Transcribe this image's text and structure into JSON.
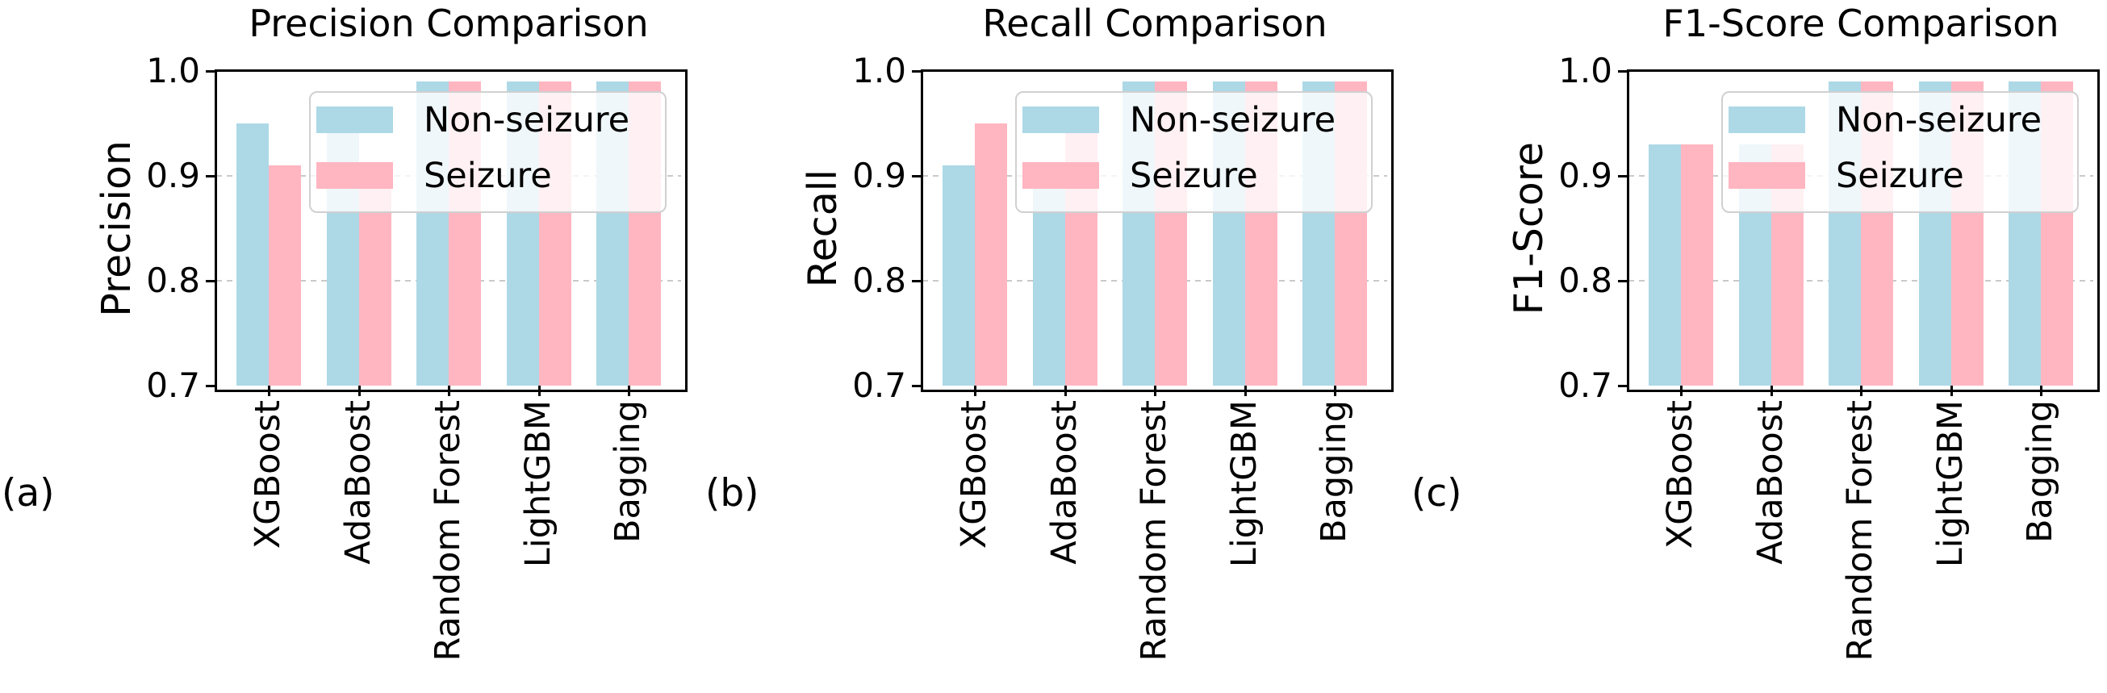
{
  "figure": {
    "background": "#ffffff",
    "panel_letters": [
      "(a)",
      "(b)",
      "(c)"
    ]
  },
  "colors": {
    "non_seizure": "#ADD8E6",
    "seizure": "#FFB6C1",
    "grid": "#c9c9c9",
    "spine": "#000000",
    "legend_border": "#d0d0d0",
    "text": "#000000"
  },
  "legend": {
    "labels": [
      "Non-seizure",
      "Seizure"
    ],
    "position": "upper center"
  },
  "chart_data": [
    {
      "type": "bar",
      "title": "Precision Comparison",
      "ylabel": "Precision",
      "panel_label": "(a)",
      "categories": [
        "XGBoost",
        "AdaBoost",
        "Random Forest",
        "LightGBM",
        "Bagging"
      ],
      "series": [
        {
          "name": "Non-seizure",
          "values": [
            0.95,
            0.95,
            0.99,
            0.99,
            0.99
          ]
        },
        {
          "name": "Seizure",
          "values": [
            0.91,
            0.9,
            0.99,
            0.99,
            0.99
          ]
        }
      ],
      "ylim": [
        0.7,
        1.0
      ],
      "yticks": [
        1.0,
        0.9,
        0.8,
        0.7
      ],
      "grid": "horizontal-dashed",
      "legend_position": "upper center"
    },
    {
      "type": "bar",
      "title": "Recall Comparison",
      "ylabel": "Recall",
      "panel_label": "(b)",
      "categories": [
        "XGBoost",
        "AdaBoost",
        "Random Forest",
        "LightGBM",
        "Bagging"
      ],
      "series": [
        {
          "name": "Non-seizure",
          "values": [
            0.91,
            0.9,
            0.99,
            0.99,
            0.99
          ]
        },
        {
          "name": "Seizure",
          "values": [
            0.95,
            0.95,
            0.99,
            0.99,
            0.99
          ]
        }
      ],
      "ylim": [
        0.7,
        1.0
      ],
      "yticks": [
        1.0,
        0.9,
        0.8,
        0.7
      ],
      "grid": "horizontal-dashed",
      "legend_position": "upper center"
    },
    {
      "type": "bar",
      "title": "F1-Score Comparison",
      "ylabel": "F1-Score",
      "panel_label": "(c)",
      "categories": [
        "XGBoost",
        "AdaBoost",
        "Random Forest",
        "LightGBM",
        "Bagging"
      ],
      "series": [
        {
          "name": "Non-seizure",
          "values": [
            0.93,
            0.93,
            0.99,
            0.99,
            0.99
          ]
        },
        {
          "name": "Seizure",
          "values": [
            0.93,
            0.93,
            0.99,
            0.99,
            0.99
          ]
        }
      ],
      "ylim": [
        0.7,
        1.0
      ],
      "yticks": [
        1.0,
        0.9,
        0.8,
        0.7
      ],
      "grid": "horizontal-dashed",
      "legend_position": "upper center"
    }
  ]
}
